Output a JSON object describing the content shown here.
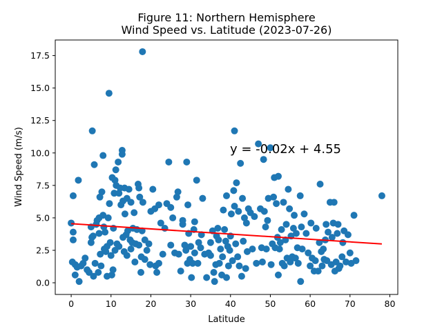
{
  "chart_data": {
    "type": "scatter",
    "title": "Figure 11: Northern Hemisphere",
    "subtitle": "Wind Speed vs. Latitude (2023-07-26)",
    "xlabel": "Latitude",
    "ylabel": "Wind Speed (m/s)",
    "xlim": [
      -4,
      82
    ],
    "ylim": [
      -0.9,
      18.7
    ],
    "xticks": [
      0,
      10,
      20,
      30,
      40,
      50,
      60,
      70,
      80
    ],
    "yticks": [
      0.0,
      2.5,
      5.0,
      7.5,
      10.0,
      12.5,
      15.0,
      17.5
    ],
    "xtick_labels": [
      "0",
      "10",
      "20",
      "30",
      "40",
      "50",
      "60",
      "70",
      "80"
    ],
    "ytick_labels": [
      "0.0",
      "2.5",
      "5.0",
      "7.5",
      "10.0",
      "12.5",
      "15.0",
      "17.5"
    ],
    "grid": false,
    "point_color": "#1f77b4",
    "regression": {
      "slope": -0.02,
      "intercept": 4.55,
      "x_range": [
        0,
        78
      ],
      "equation": "y = -0.02x + 4.55",
      "color": "#ff0000"
    },
    "points": [
      [
        0,
        4.6
      ],
      [
        0.3,
        1.6
      ],
      [
        0.5,
        6.7
      ],
      [
        0.5,
        3.9
      ],
      [
        0.5,
        3.3
      ],
      [
        1,
        1.4
      ],
      [
        1,
        0.6
      ],
      [
        1.5,
        1.2
      ],
      [
        1.8,
        7.9
      ],
      [
        2,
        0.1
      ],
      [
        2.5,
        1.3
      ],
      [
        3,
        1.5
      ],
      [
        3.5,
        1.9
      ],
      [
        4,
        1.0
      ],
      [
        4.5,
        0.8
      ],
      [
        5,
        4.3
      ],
      [
        5,
        3.1
      ],
      [
        5.2,
        3.5
      ],
      [
        5.3,
        11.7
      ],
      [
        5.5,
        3.6
      ],
      [
        5.6,
        0.5
      ],
      [
        5.8,
        9.1
      ],
      [
        6,
        1.5
      ],
      [
        6.3,
        4.5
      ],
      [
        6.5,
        4.8
      ],
      [
        6.8,
        0.8
      ],
      [
        7,
        5.0
      ],
      [
        7,
        3.8
      ],
      [
        7.2,
        6.6
      ],
      [
        7.3,
        2.2
      ],
      [
        7.5,
        1.3
      ],
      [
        7.7,
        7.0
      ],
      [
        8,
        9.8
      ],
      [
        8,
        5.2
      ],
      [
        8.2,
        4.3
      ],
      [
        8.3,
        2.6
      ],
      [
        8.5,
        3.9
      ],
      [
        8.7,
        2.4
      ],
      [
        9,
        2.8
      ],
      [
        9,
        0.5
      ],
      [
        9.3,
        5.0
      ],
      [
        9.5,
        14.6
      ],
      [
        9.6,
        6.1
      ],
      [
        9.8,
        3.1
      ],
      [
        10,
        2.1
      ],
      [
        10.2,
        0.6
      ],
      [
        10.3,
        8.1
      ],
      [
        10.5,
        1.0
      ],
      [
        10.6,
        4.2
      ],
      [
        10.8,
        6.9
      ],
      [
        11,
        2.5
      ],
      [
        11,
        7.9
      ],
      [
        11.2,
        8.7
      ],
      [
        11.3,
        7.5
      ],
      [
        11.5,
        3.0
      ],
      [
        11.8,
        9.3
      ],
      [
        12,
        6.9
      ],
      [
        12,
        2.8
      ],
      [
        12.3,
        7.3
      ],
      [
        12.5,
        6.0
      ],
      [
        12.8,
        10.2
      ],
      [
        12.8,
        9.9
      ],
      [
        13,
        3.5
      ],
      [
        13,
        6.3
      ],
      [
        13.3,
        2.4
      ],
      [
        13.4,
        7.3
      ],
      [
        13.5,
        5.3
      ],
      [
        13.8,
        3.7
      ],
      [
        14,
        2.1
      ],
      [
        14,
        6.5
      ],
      [
        14.2,
        4.0
      ],
      [
        14.5,
        7.2
      ],
      [
        14.8,
        3.3
      ],
      [
        15,
        6.2
      ],
      [
        15,
        2.6
      ],
      [
        15.3,
        3.1
      ],
      [
        15.5,
        4.2
      ],
      [
        15.8,
        5.4
      ],
      [
        16,
        1.6
      ],
      [
        16.2,
        3.0
      ],
      [
        16.5,
        4.1
      ],
      [
        16.8,
        7.6
      ],
      [
        17,
        2.9
      ],
      [
        17,
        7.3
      ],
      [
        17.2,
        6.6
      ],
      [
        17.5,
        0.8
      ],
      [
        17.6,
        2.0
      ],
      [
        17.8,
        4.0
      ],
      [
        17.9,
        17.8
      ],
      [
        18,
        6.2
      ],
      [
        18.5,
        3.3
      ],
      [
        18.5,
        1.8
      ],
      [
        19,
        2.5
      ],
      [
        19.5,
        3.0
      ],
      [
        19.8,
        1.4
      ],
      [
        20,
        5.5
      ],
      [
        20.5,
        7.2
      ],
      [
        21,
        5.7
      ],
      [
        21.2,
        1.3
      ],
      [
        21.5,
        0.8
      ],
      [
        22,
        6.0
      ],
      [
        22,
        1.5
      ],
      [
        22.5,
        4.6
      ],
      [
        23,
        2.2
      ],
      [
        23.5,
        4.2
      ],
      [
        24,
        6.1
      ],
      [
        24.5,
        9.3
      ],
      [
        25,
        2.9
      ],
      [
        25,
        5.8
      ],
      [
        25.5,
        5.0
      ],
      [
        26,
        2.3
      ],
      [
        26.5,
        6.6
      ],
      [
        26.8,
        7.0
      ],
      [
        27,
        2.2
      ],
      [
        27.5,
        0.9
      ],
      [
        28,
        4.5
      ],
      [
        28,
        4.8
      ],
      [
        28.5,
        2.9
      ],
      [
        28.8,
        2.5
      ],
      [
        29,
        9.3
      ],
      [
        29.2,
        1.5
      ],
      [
        29.3,
        6.0
      ],
      [
        29.5,
        3.8
      ],
      [
        29.8,
        1.8
      ],
      [
        30,
        2.8
      ],
      [
        30.2,
        0.4
      ],
      [
        30.5,
        1.5
      ],
      [
        30.8,
        4.1
      ],
      [
        31,
        2.3
      ],
      [
        31,
        4.7
      ],
      [
        31.5,
        7.9
      ],
      [
        31.8,
        1.5
      ],
      [
        32,
        3.1
      ],
      [
        32.5,
        2.7
      ],
      [
        32.7,
        3.7
      ],
      [
        33,
        6.5
      ],
      [
        33.5,
        2.2
      ],
      [
        34,
        0.4
      ],
      [
        34.5,
        2.3
      ],
      [
        35,
        3.1
      ],
      [
        35,
        2.1
      ],
      [
        35.5,
        4.0
      ],
      [
        35.8,
        0.8
      ],
      [
        36,
        0.1
      ],
      [
        36.3,
        1.4
      ],
      [
        36.5,
        3.6
      ],
      [
        36.8,
        4.2
      ],
      [
        37,
        3.3
      ],
      [
        37.2,
        1.5
      ],
      [
        37.5,
        2.6
      ],
      [
        37.8,
        0.6
      ],
      [
        38,
        2.0
      ],
      [
        38.2,
        5.6
      ],
      [
        38.5,
        4.1
      ],
      [
        38.8,
        3.2
      ],
      [
        39,
        0.4
      ],
      [
        39,
        6.7
      ],
      [
        39.3,
        2.8
      ],
      [
        39.5,
        1.3
      ],
      [
        39.8,
        2.5
      ],
      [
        40,
        3.6
      ],
      [
        40.2,
        5.3
      ],
      [
        40.5,
        1.7
      ],
      [
        40.8,
        7.1
      ],
      [
        41,
        5.9
      ],
      [
        41,
        11.7
      ],
      [
        41.3,
        3.0
      ],
      [
        41.5,
        7.7
      ],
      [
        41.8,
        2.0
      ],
      [
        42,
        5.5
      ],
      [
        42.2,
        1.3
      ],
      [
        42.5,
        9.2
      ],
      [
        42.8,
        0.5
      ],
      [
        43,
        6.5
      ],
      [
        43.2,
        3.2
      ],
      [
        43.5,
        5.0
      ],
      [
        43.8,
        1.1
      ],
      [
        44,
        4.6
      ],
      [
        44.2,
        2.4
      ],
      [
        44.5,
        5.7
      ],
      [
        45,
        5.4
      ],
      [
        45.5,
        2.6
      ],
      [
        46,
        5.1
      ],
      [
        46.5,
        1.5
      ],
      [
        47,
        10.7
      ],
      [
        47.5,
        5.7
      ],
      [
        47.8,
        2.7
      ],
      [
        48,
        1.6
      ],
      [
        48.3,
        9.5
      ],
      [
        48.5,
        5.5
      ],
      [
        48.8,
        4.3
      ],
      [
        49,
        2.6
      ],
      [
        49.3,
        4.8
      ],
      [
        49.5,
        6.5
      ],
      [
        50,
        10.4
      ],
      [
        50.2,
        1.4
      ],
      [
        50.5,
        3.0
      ],
      [
        50.8,
        6.6
      ],
      [
        51,
        8.1
      ],
      [
        51.2,
        2.7
      ],
      [
        51.5,
        6.1
      ],
      [
        51.8,
        3.5
      ],
      [
        52,
        8.2
      ],
      [
        52,
        0.6
      ],
      [
        52.3,
        2.6
      ],
      [
        52.5,
        3.1
      ],
      [
        52.8,
        4.1
      ],
      [
        53,
        1.5
      ],
      [
        53.3,
        6.2
      ],
      [
        53.5,
        1.3
      ],
      [
        53.8,
        3.3
      ],
      [
        54,
        4.5
      ],
      [
        54.2,
        1.9
      ],
      [
        54.5,
        7.2
      ],
      [
        54.8,
        5.7
      ],
      [
        55,
        1.6
      ],
      [
        55.2,
        3.6
      ],
      [
        55.5,
        2.0
      ],
      [
        55.8,
        4.2
      ],
      [
        56,
        5.2
      ],
      [
        56.3,
        1.9
      ],
      [
        56.5,
        3.8
      ],
      [
        56.8,
        2.7
      ],
      [
        57,
        1.5
      ],
      [
        57.5,
        6.7
      ],
      [
        57.6,
        0.1
      ],
      [
        57.8,
        4.3
      ],
      [
        58,
        2.6
      ],
      [
        58.5,
        5.3
      ],
      [
        59,
        3.8
      ],
      [
        59.5,
        2.3
      ],
      [
        60,
        1.3
      ],
      [
        60.2,
        4.6
      ],
      [
        60.5,
        1.9
      ],
      [
        61,
        0.9
      ],
      [
        61.3,
        1.7
      ],
      [
        61.5,
        4.2
      ],
      [
        62,
        0.9
      ],
      [
        62.3,
        3.1
      ],
      [
        62.5,
        7.6
      ],
      [
        62.8,
        2.4
      ],
      [
        63,
        1.3
      ],
      [
        63.3,
        2.6
      ],
      [
        63.5,
        1.8
      ],
      [
        63.8,
        3.3
      ],
      [
        64,
        4.5
      ],
      [
        64.2,
        1.7
      ],
      [
        64.5,
        3.9
      ],
      [
        65,
        6.2
      ],
      [
        65.3,
        1.4
      ],
      [
        65.5,
        3.5
      ],
      [
        65.8,
        4.6
      ],
      [
        66,
        6.2
      ],
      [
        66.2,
        0.9
      ],
      [
        66.5,
        1.6
      ],
      [
        66.8,
        3.8
      ],
      [
        67,
        4.5
      ],
      [
        67.2,
        1.1
      ],
      [
        67.5,
        1.3
      ],
      [
        68,
        2.0
      ],
      [
        68.2,
        3.1
      ],
      [
        68.5,
        4.0
      ],
      [
        69,
        1.6
      ],
      [
        69.5,
        3.7
      ],
      [
        70,
        2.3
      ],
      [
        70.3,
        1.5
      ],
      [
        71,
        5.2
      ],
      [
        71.5,
        1.7
      ],
      [
        78,
        6.7
      ]
    ]
  }
}
